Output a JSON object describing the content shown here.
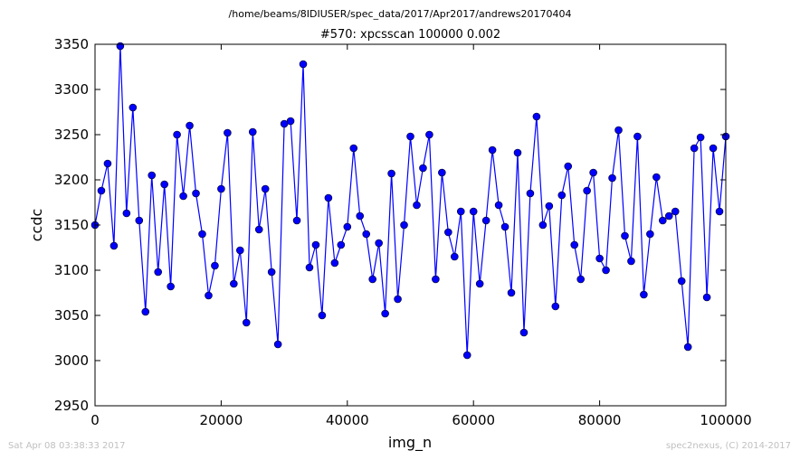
{
  "header": {
    "path": "/home/beams/8IDIUSER/spec_data/2017/Apr2017/andrews20170404",
    "scan": "#570: xpcsscan 100000 0.002"
  },
  "footer": {
    "timestamp": "Sat Apr 08 03:38:33 2017",
    "credit": "spec2nexus, (C) 2014-2017"
  },
  "chart_data": {
    "type": "line",
    "title": "#570: xpcsscan 100000 0.002",
    "xlabel": "img_n",
    "ylabel": "ccdc",
    "xlim": [
      0,
      100000
    ],
    "ylim": [
      2950,
      3350
    ],
    "xticks": [
      0,
      20000,
      40000,
      60000,
      80000,
      100000
    ],
    "yticks": [
      2950,
      3000,
      3050,
      3100,
      3150,
      3200,
      3250,
      3300,
      3350
    ],
    "grid": false,
    "legend": "none",
    "color": "#0000ff",
    "marker": "circle",
    "series": [
      {
        "x": [
          0,
          1000,
          2000,
          3000,
          4000,
          5000,
          6000,
          7000,
          8000,
          9000,
          10000,
          11000,
          12000,
          13000,
          14000,
          15000,
          16000,
          17000,
          18000,
          19000,
          20000,
          21000,
          22000,
          23000,
          24000,
          25000,
          26000,
          27000,
          28000,
          29000,
          30000,
          31000,
          32000,
          33000,
          34000,
          35000,
          36000,
          37000,
          38000,
          39000,
          40000,
          41000,
          42000,
          43000,
          44000,
          45000,
          46000,
          47000,
          48000,
          49000,
          50000,
          51000,
          52000,
          53000,
          54000,
          55000,
          56000,
          57000,
          58000,
          59000,
          60000,
          61000,
          62000,
          63000,
          64000,
          65000,
          66000,
          67000,
          68000,
          69000,
          70000,
          71000,
          72000,
          73000,
          74000,
          75000,
          76000,
          77000,
          78000,
          79000,
          80000,
          81000,
          82000,
          83000,
          84000,
          85000,
          86000,
          87000,
          88000,
          89000,
          90000,
          91000,
          92000,
          93000,
          94000,
          95000,
          96000,
          97000,
          98000,
          99000,
          100000
        ],
        "y": [
          3150,
          3188,
          3218,
          3127,
          3348,
          3163,
          3280,
          3155,
          3054,
          3205,
          3098,
          3195,
          3082,
          3250,
          3182,
          3260,
          3185,
          3140,
          3072,
          3105,
          3190,
          3252,
          3085,
          3122,
          3042,
          3253,
          3145,
          3190,
          3098,
          3018,
          3262,
          3265,
          3155,
          3328,
          3103,
          3128,
          3050,
          3180,
          3108,
          3128,
          3148,
          3235,
          3160,
          3140,
          3090,
          3130,
          3052,
          3207,
          3068,
          3150,
          3248,
          3172,
          3213,
          3250,
          3090,
          3208,
          3142,
          3115,
          3165,
          3006,
          3165,
          3085,
          3155,
          3233,
          3172,
          3148,
          3075,
          3230,
          3031,
          3185,
          3270,
          3150,
          3171,
          3060,
          3183,
          3215,
          3128,
          3090,
          3188,
          3208,
          3113,
          3100,
          3202,
          3255,
          3138,
          3110,
          3248,
          3073,
          3140,
          3203,
          3155,
          3160,
          3165,
          3088,
          3015,
          3235,
          3247,
          3070,
          3235,
          3165,
          3248
        ]
      }
    ]
  }
}
